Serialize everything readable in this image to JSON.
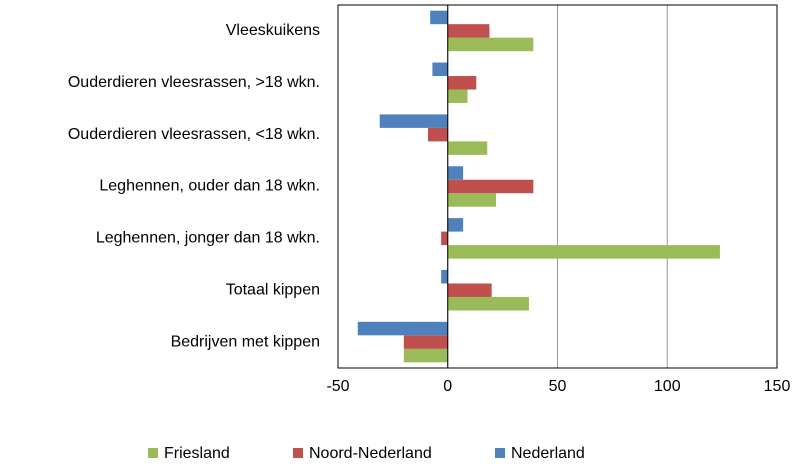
{
  "chart_data": {
    "type": "bar",
    "orientation": "horizontal",
    "categories": [
      "Vleeskuikens",
      "Ouderdieren vleesrassen, >18 wkn.",
      "Ouderdieren vleesrassen, <18 wkn.",
      "Leghennen, ouder dan 18 wkn.",
      "Leghennen, jonger dan 18 wkn.",
      "Totaal kippen",
      "Bedrijven met kippen"
    ],
    "series": [
      {
        "name": "Friesland",
        "color": "#9bbb59",
        "values": [
          39,
          9,
          18,
          22,
          124,
          37,
          -20
        ]
      },
      {
        "name": "Noord-Nederland",
        "color": "#c0504d",
        "values": [
          19,
          13,
          -9,
          39,
          -3,
          20,
          -20
        ]
      },
      {
        "name": "Nederland",
        "color": "#4f81bd",
        "values": [
          -8,
          -7,
          -31,
          7,
          7,
          -3,
          -41
        ]
      }
    ],
    "xlim": [
      -50,
      150
    ],
    "xticks": [
      -50,
      0,
      50,
      100,
      150
    ],
    "grid": true,
    "legend": "bottom"
  }
}
